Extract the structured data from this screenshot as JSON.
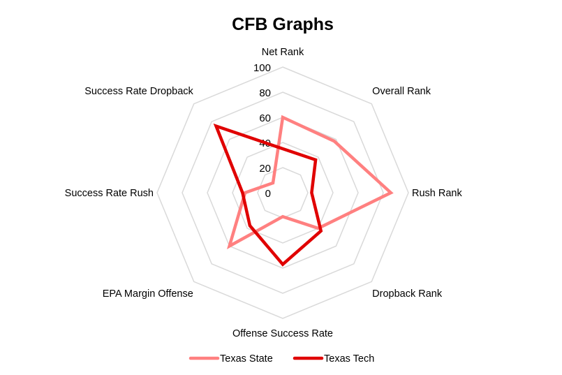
{
  "chart_data": {
    "type": "radar",
    "title": "CFB Graphs",
    "categories": [
      "Net Rank",
      "Overall Rank",
      "Rush Rank",
      "Dropback Rank",
      "Offense Success Rate",
      "EPA Margin Offense",
      "Success Rate Rush",
      "Success Rate Dropback"
    ],
    "rlim": [
      0,
      100
    ],
    "ticks": [
      0,
      20,
      40,
      60,
      80,
      100
    ],
    "tick_labels": [
      "0",
      "20",
      "40",
      "60",
      "80",
      "100"
    ],
    "grid": true,
    "legend_position": "bottom",
    "series": [
      {
        "name": "Texas State",
        "color": "#FF8080",
        "values": [
          60,
          58,
          86,
          40,
          19,
          60,
          30,
          11
        ]
      },
      {
        "name": "Texas Tech",
        "color": "#E00000",
        "values": [
          35,
          37,
          23,
          43,
          57,
          37,
          32,
          75
        ]
      }
    ]
  }
}
